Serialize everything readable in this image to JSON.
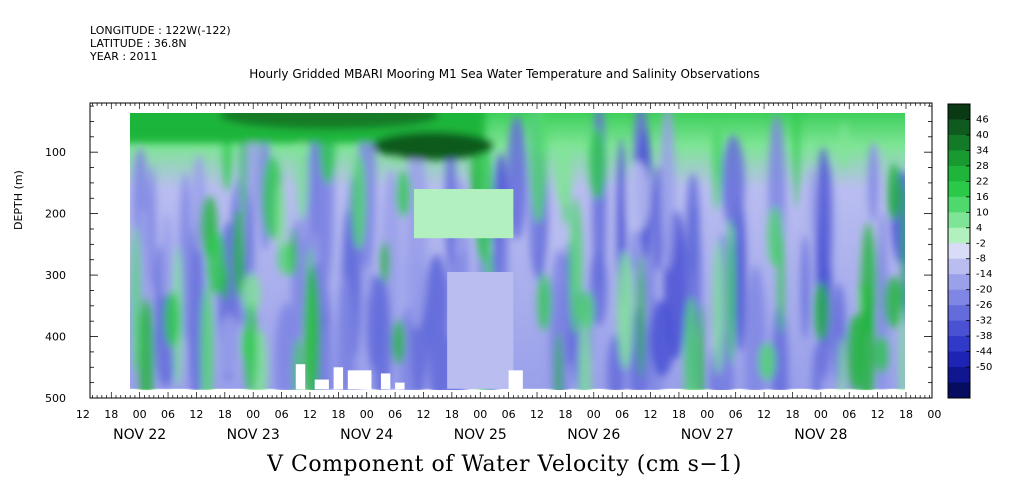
{
  "header": {
    "longitude": "LONGITUDE : 122W(-122)",
    "latitude": "LATITUDE : 36.8N",
    "year": "YEAR : 2011"
  },
  "chart_data": {
    "type": "heatmap",
    "title": "Hourly Gridded MBARI Mooring M1 Sea Water Temperature and Salinity Observations",
    "xlabel": "V Component of Water Velocity (cm s−1)",
    "ylabel": "DEPTH (m)",
    "ylim": [
      500,
      20
    ],
    "y_ticks": [
      100,
      200,
      300,
      400,
      500
    ],
    "x_tick_hours": [
      "12",
      "18",
      "00",
      "06",
      "12",
      "18",
      "00",
      "06",
      "12",
      "18",
      "00",
      "06",
      "12",
      "18",
      "00",
      "06",
      "12",
      "18",
      "00",
      "06",
      "12",
      "18",
      "00",
      "06",
      "12",
      "18",
      "00",
      "06",
      "12",
      "18",
      "00"
    ],
    "x_day_labels": [
      "NOV 22",
      "NOV 23",
      "NOV 24",
      "NOV 25",
      "NOV 26",
      "NOV 27",
      "NOV 28"
    ],
    "data_time_range_hours_from_nov22_00": [
      -9,
      165
    ],
    "data_depth_range_m": [
      20,
      485
    ],
    "colorbar": {
      "levels": [
        "46",
        "40",
        "34",
        "28",
        "22",
        "16",
        "10",
        "4",
        "-2",
        "-8",
        "-14",
        "-20",
        "-26",
        "-32",
        "-38",
        "-44",
        "-50"
      ],
      "colors_high_to_low": [
        "#0a3a14",
        "#0f5a1e",
        "#137a27",
        "#189a30",
        "#1fb53a",
        "#2bc94a",
        "#4fd86b",
        "#7fe596",
        "#b2f0c0",
        "#d8dcf6",
        "#b9bdf0",
        "#9aa0ea",
        "#7f86e3",
        "#646cdb",
        "#4a52d3",
        "#3139c8",
        "#1d24b4",
        "#0f1690",
        "#060c60"
      ]
    },
    "notes": "Filled contour of meridional velocity vs time (Nov 21 15:00 – Nov 28 21:00, 2011) and depth (20–485 m); strong positive (green) near surface Nov 22–24, negative (blue) columns Nov 25–28, with a gap region of uniform values near Nov 24 18:00–Nov 25 06:00 at 230–485 m."
  }
}
